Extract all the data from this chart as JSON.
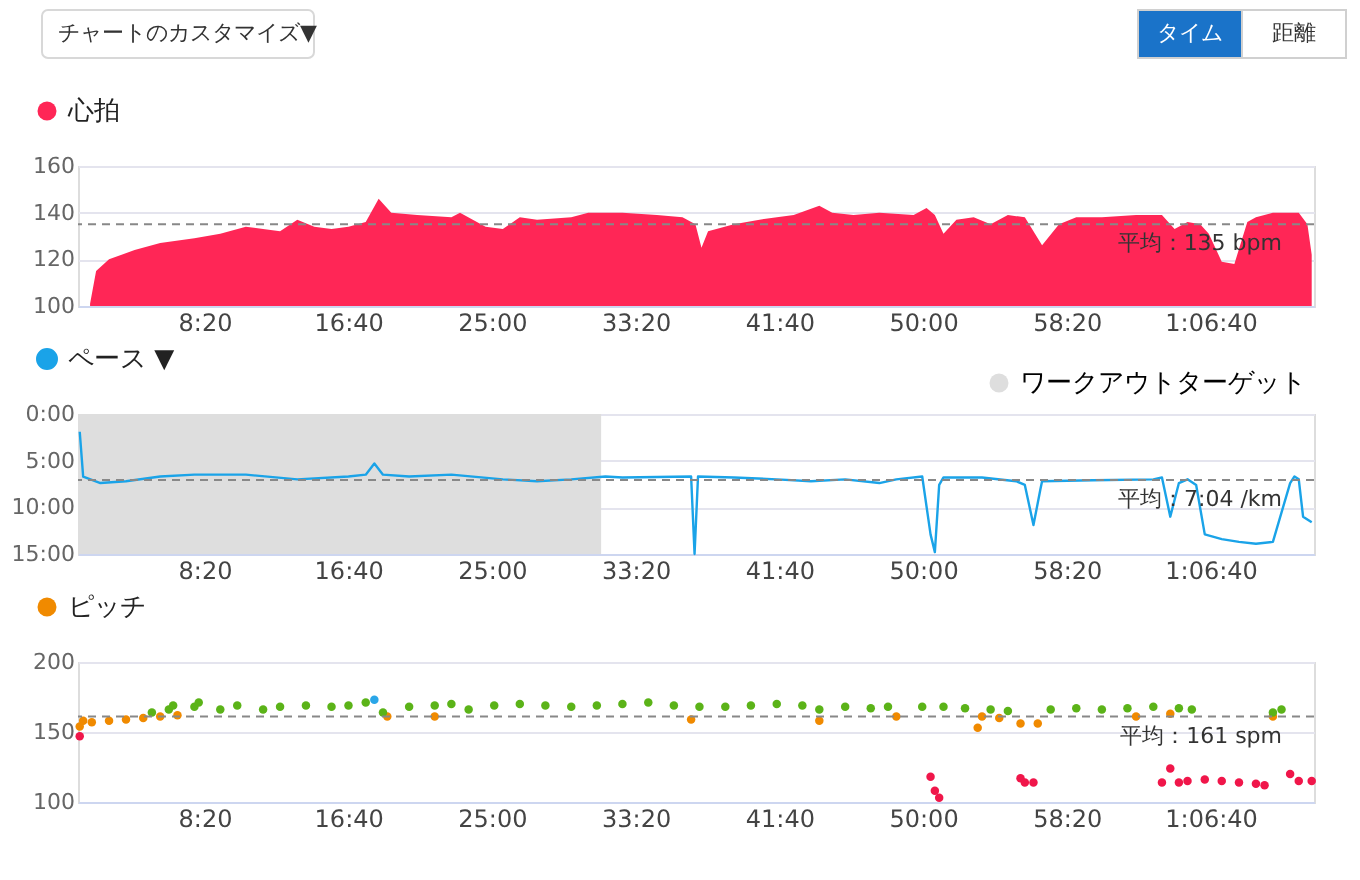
{
  "chart_data": [
    {
      "type": "area",
      "legend": "top left",
      "annotations": [
        "チャートのカスタマイズ▼",
        "タイム",
        "距離"
      ],
      "x": [
        102,
        123,
        168,
        257,
        346,
        465,
        555,
        644,
        704,
        763,
        823,
        882,
        942,
        1001,
        1061,
        1106,
        1150,
        1240,
        1359,
        1389,
        1478,
        1538,
        1597,
        1657,
        1776,
        1835,
        1954,
        2074,
        2163,
        2208,
        2229,
        2252,
        2342,
        2431,
        2550,
        2639,
        2684,
        2758,
        2848,
        2967,
        3012,
        3041,
        3071,
        3116,
        3176,
        3235,
        3295,
        3354,
        3414,
        3473,
        3533,
        3622,
        3741,
        3831,
        3875,
        3920,
        3964,
        3994,
        4039,
        4083,
        4128,
        4158,
        4217,
        4277,
        4307,
        4337,
        4352
      ],
      "series": [
        {
          "name": "心拍",
          "color": "#ff2656",
          "values": [
            101,
            115,
            120,
            124,
            127,
            129,
            131,
            134,
            133,
            132,
            137,
            134,
            133,
            134,
            136,
            146,
            140,
            139,
            138,
            140,
            134,
            133,
            138,
            137,
            138,
            140,
            140,
            139,
            138,
            135,
            125,
            132,
            135,
            137,
            139,
            143,
            140,
            139,
            140,
            139,
            142,
            139,
            131,
            137,
            138,
            135,
            139,
            138,
            126,
            135,
            138,
            138,
            139,
            139,
            133,
            136,
            135,
            131,
            119,
            118,
            136,
            138,
            140,
            140,
            140,
            135,
            122
          ]
        }
      ],
      "xlim": [
        60,
        4360
      ],
      "xticks": [
        {
          "value": 500,
          "label": "8:20"
        },
        {
          "value": 1000,
          "label": "16:40"
        },
        {
          "value": 1500,
          "label": "25:00"
        },
        {
          "value": 2000,
          "label": "33:20"
        },
        {
          "value": 2500,
          "label": "41:40"
        },
        {
          "value": 3000,
          "label": "50:00"
        },
        {
          "value": 3500,
          "label": "58:20"
        },
        {
          "value": 4000,
          "label": "1:06:40"
        }
      ],
      "ylim": [
        100,
        160
      ],
      "yticks": [
        100,
        120,
        140,
        160
      ],
      "grid": "y",
      "ref_lines": [
        {
          "axis": "y",
          "value": 135,
          "label": "平均：135 bpm",
          "line_style": "dashed"
        }
      ]
    },
    {
      "type": "line",
      "legend": "top left",
      "x": [
        66,
        78,
        138,
        227,
        346,
        465,
        644,
        823,
        1001,
        1061,
        1091,
        1121,
        1212,
        1359,
        1538,
        1657,
        1776,
        1895,
        1954,
        2193,
        2205,
        2217,
        2342,
        2491,
        2610,
        2729,
        2848,
        2907,
        2997,
        3026,
        3041,
        3056,
        3071,
        3086,
        3205,
        3324,
        3354,
        3384,
        3408,
        3414,
        3592,
        3801,
        3831,
        3860,
        3890,
        3920,
        3950,
        3980,
        4039,
        4099,
        4158,
        4217,
        4277,
        4292,
        4307,
        4322,
        4352
      ],
      "series": [
        {
          "name": "ペース ▼",
          "color": "#1aa3e8",
          "values": [
            1.9,
            6.7,
            7.4,
            7.2,
            6.7,
            6.5,
            6.5,
            7.0,
            6.7,
            6.5,
            5.3,
            6.5,
            6.7,
            6.5,
            7.0,
            7.2,
            7.0,
            6.7,
            6.8,
            6.7,
            15,
            6.7,
            6.8,
            7.0,
            7.2,
            7.0,
            7.4,
            7.0,
            6.7,
            12.9,
            14.8,
            7.6,
            6.8,
            6.8,
            6.8,
            7.2,
            7.6,
            11.9,
            8.1,
            7.2,
            7.1,
            7.0,
            6.8,
            11.0,
            7.4,
            7.0,
            7.6,
            12.9,
            13.4,
            13.7,
            13.9,
            13.7,
            7.4,
            6.7,
            7.0,
            11.0,
            11.6
          ]
        }
      ],
      "xlim": [
        60,
        4360
      ],
      "xticks": [
        {
          "value": 500,
          "label": "8:20"
        },
        {
          "value": 1000,
          "label": "16:40"
        },
        {
          "value": 1500,
          "label": "25:00"
        },
        {
          "value": 2000,
          "label": "33:20"
        },
        {
          "value": 2500,
          "label": "41:40"
        },
        {
          "value": 3000,
          "label": "50:00"
        },
        {
          "value": 3500,
          "label": "58:20"
        },
        {
          "value": 4000,
          "label": "1:06:40"
        }
      ],
      "ylim": [
        15,
        0
      ],
      "yticks": [
        {
          "value": 0,
          "label": "0:00"
        },
        {
          "value": 5,
          "label": "5:00"
        },
        {
          "value": 10,
          "label": "10:00"
        },
        {
          "value": 15,
          "label": "15:00"
        }
      ],
      "grid": "y",
      "bands": [
        {
          "axis": "x",
          "from": 60,
          "to": 1880,
          "label": "ワークアウトターゲット",
          "color": "#dedede"
        }
      ],
      "ref_lines": [
        {
          "axis": "y",
          "value": 7.07,
          "label": "平均：7:04 /km",
          "line_style": "dashed"
        }
      ]
    },
    {
      "type": "scatter",
      "legend": "top left",
      "marker": "circle",
      "series": [
        {
          "name": "ピッチ",
          "color": "#f08a00",
          "x": [
            66,
            78,
            108,
            168,
            227,
            287,
            346,
            406,
            1136,
            1301,
            2193,
            2639,
            2907,
            3190,
            3205,
            3265,
            3339,
            3399,
            3741,
            3860,
            4217
          ],
          "values": [
            154,
            158,
            157,
            158,
            159,
            160,
            161,
            162,
            161,
            161,
            159,
            158,
            161,
            153,
            161,
            160,
            156,
            156,
            161,
            163,
            161
          ]
        },
        {
          "color": "#5bb318",
          "x": [
            317,
            376,
            391,
            465,
            480,
            555,
            614,
            704,
            763,
            853,
            942,
            1001,
            1061,
            1121,
            1212,
            1301,
            1359,
            1419,
            1508,
            1597,
            1686,
            1776,
            1865,
            1954,
            2044,
            2133,
            2222,
            2312,
            2401,
            2491,
            2580,
            2639,
            2729,
            2818,
            2878,
            2997,
            3071,
            3146,
            3235,
            3295,
            3444,
            3533,
            3622,
            3711,
            3801,
            3890,
            3935,
            4217,
            4247
          ],
          "values": [
            164,
            166,
            169,
            168,
            171,
            166,
            169,
            166,
            168,
            169,
            168,
            169,
            171,
            164,
            168,
            169,
            170,
            166,
            169,
            170,
            169,
            168,
            169,
            170,
            171,
            169,
            168,
            168,
            169,
            170,
            169,
            166,
            168,
            167,
            168,
            168,
            168,
            167,
            166,
            165,
            166,
            167,
            166,
            167,
            168,
            167,
            166,
            164,
            166
          ]
        },
        {
          "color": "#f0164a",
          "x": [
            66,
            3026,
            3041,
            3056,
            3339,
            3354,
            3384,
            3831,
            3860,
            3890,
            3920,
            3980,
            4039,
            4099,
            4158,
            4188,
            4277,
            4307,
            4352
          ],
          "values": [
            147,
            118,
            108,
            103,
            117,
            114,
            114,
            114,
            124,
            114,
            115,
            116,
            115,
            114,
            113,
            112,
            120,
            115,
            115
          ]
        },
        {
          "color": "#2aa6e8",
          "x": [
            1091
          ],
          "values": [
            173
          ]
        }
      ],
      "xlim": [
        60,
        4360
      ],
      "xticks": [
        {
          "value": 500,
          "label": "8:20"
        },
        {
          "value": 1000,
          "label": "16:40"
        },
        {
          "value": 1500,
          "label": "25:00"
        },
        {
          "value": 2000,
          "label": "33:20"
        },
        {
          "value": 2500,
          "label": "41:40"
        },
        {
          "value": 3000,
          "label": "50:00"
        },
        {
          "value": 3500,
          "label": "58:20"
        },
        {
          "value": 4000,
          "label": "1:06:40"
        }
      ],
      "ylim": [
        100,
        200
      ],
      "yticks": [
        100,
        150,
        200
      ],
      "grid": "y",
      "ref_lines": [
        {
          "axis": "y",
          "value": 161,
          "label": "平均：161 spm",
          "line_style": "dashed"
        }
      ]
    }
  ]
}
